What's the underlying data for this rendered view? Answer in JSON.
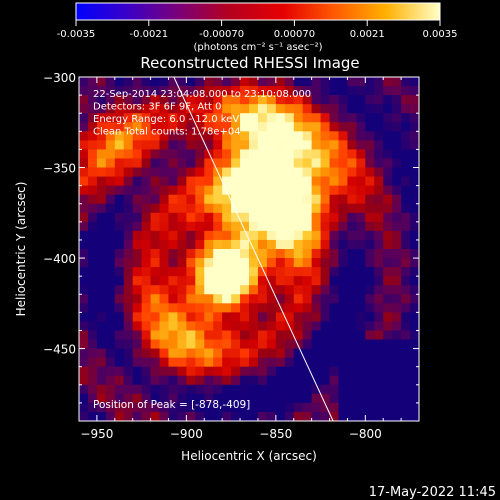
{
  "chart_data": {
    "type": "heatmap",
    "title": "Reconstructed RHESSI Image",
    "xlabel": "Heliocentric X (arcsec)",
    "ylabel": "Heliocentric Y (arcsec)",
    "xlim": [
      -960,
      -770
    ],
    "ylim": [
      -490,
      -300
    ],
    "x_ticks": [
      -950,
      -900,
      -850,
      -800
    ],
    "y_ticks": [
      -300,
      -350,
      -400,
      -450
    ],
    "colorbar": {
      "range": [
        -0.0035,
        0.0035
      ],
      "ticks": [
        "-0.0035",
        "-0.0021",
        "-0.00070",
        "0.00070",
        "0.0021",
        "0.0035"
      ],
      "units_label": "(photons cm⁻² s⁻¹ asec⁻²)"
    },
    "annotations": [
      "22-Sep-2014 23:04:08.000 to 23:10:08.000",
      "Detectors: 3F 6F 9F, Att 0",
      "Energy Range: 6.0 - 12.0 keV",
      "Clean    Total counts: 1.78e+04"
    ],
    "peak_label": "Position of Peak = [-878,-409]",
    "peak": [
      -878,
      -409
    ],
    "limb_line": [
      [
        -907,
        -300
      ],
      [
        -818,
        -490
      ]
    ],
    "bright_sources": [
      {
        "x": -878,
        "y": -409,
        "amp": 1.0
      },
      {
        "x": -860,
        "y": -335,
        "amp": 0.85
      },
      {
        "x": -852,
        "y": -372,
        "amp": 0.7
      },
      {
        "x": -938,
        "y": -338,
        "amp": 0.55
      },
      {
        "x": -830,
        "y": -358,
        "amp": 0.5
      },
      {
        "x": -905,
        "y": -445,
        "amp": 0.45
      }
    ]
  },
  "footer": {
    "timestamp": "17-May-2022 11:45"
  }
}
